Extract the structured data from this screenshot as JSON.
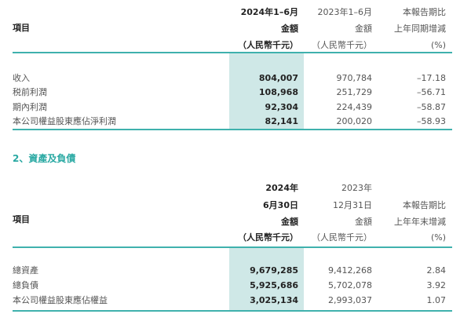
{
  "table1": {
    "header": {
      "item": "項目",
      "c1": [
        "2024年1–6月",
        "金額",
        "（人民幣千元）"
      ],
      "c2": [
        "2023年1–6月",
        "金額",
        "（人民幣千元）"
      ],
      "c3": [
        "本報告期比",
        "上年同期增減",
        "(%)"
      ]
    },
    "rows": [
      {
        "label": "收入",
        "c1": "804,007",
        "c2": "970,784",
        "c3": "–17.18"
      },
      {
        "label": "税前利潤",
        "c1": "108,968",
        "c2": "251,729",
        "c3": "–56.71"
      },
      {
        "label": "期內利潤",
        "c1": "92,304",
        "c2": "224,439",
        "c3": "–58.87"
      },
      {
        "label": "本公司權益股東應佔淨利潤",
        "c1": "82,141",
        "c2": "200,020",
        "c3": "–58.93"
      }
    ]
  },
  "section2_title": "2、資產及負債",
  "table2": {
    "header": {
      "item": "項目",
      "c1": [
        "2024年",
        "6月30日",
        "金額",
        "（人民幣千元）"
      ],
      "c2": [
        "2023年",
        "12月31日",
        "金額",
        "（人民幣千元）"
      ],
      "c3": [
        "本報告期比",
        "上年年末增減",
        "(%)"
      ]
    },
    "rows": [
      {
        "label": "總資產",
        "c1": "9,679,285",
        "c2": "9,412,268",
        "c3": "2.84"
      },
      {
        "label": "總負債",
        "c1": "5,925,686",
        "c2": "5,702,078",
        "c3": "3.92"
      },
      {
        "label": "本公司權益股東應佔權益",
        "c1": "3,025,134",
        "c2": "2,993,037",
        "c3": "1.07"
      }
    ]
  },
  "colors": {
    "accent": "#3fb1ad",
    "shade": "#cfe8e7"
  }
}
